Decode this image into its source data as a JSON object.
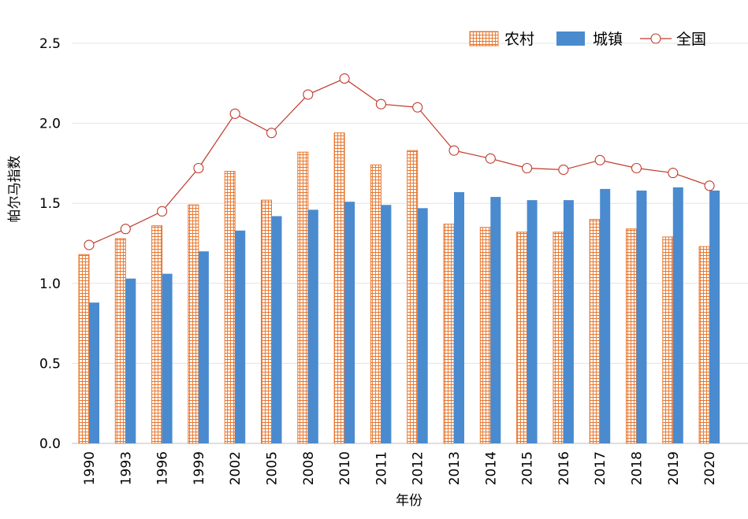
{
  "chart_data": {
    "type": "bar",
    "categories": [
      "1990",
      "1993",
      "1996",
      "1999",
      "2002",
      "2005",
      "2008",
      "2010",
      "2011",
      "2012",
      "2013",
      "2014",
      "2015",
      "2016",
      "2017",
      "2018",
      "2019",
      "2020"
    ],
    "series": [
      {
        "name": "农村",
        "kind": "bar",
        "pattern": "grid",
        "color": "#E8752B",
        "values": [
          1.18,
          1.28,
          1.36,
          1.49,
          1.7,
          1.52,
          1.82,
          1.94,
          1.74,
          1.83,
          1.37,
          1.35,
          1.32,
          1.32,
          1.4,
          1.34,
          1.29,
          1.23
        ]
      },
      {
        "name": "城镇",
        "kind": "bar",
        "color": "#4A8BD0",
        "values": [
          0.88,
          1.03,
          1.06,
          1.2,
          1.33,
          1.42,
          1.46,
          1.51,
          1.49,
          1.47,
          1.57,
          1.54,
          1.52,
          1.52,
          1.59,
          1.58,
          1.6,
          1.58
        ]
      },
      {
        "name": "全国",
        "kind": "line",
        "marker": "circle",
        "color": "#C0392B",
        "values": [
          1.24,
          1.34,
          1.45,
          1.72,
          2.06,
          1.94,
          2.18,
          2.28,
          2.12,
          2.1,
          1.83,
          1.78,
          1.72,
          1.71,
          1.77,
          1.72,
          1.69,
          1.61
        ]
      }
    ],
    "xlabel": "年份",
    "ylabel": "帕尔马指数",
    "ylim": [
      0,
      2.5
    ],
    "yticks": [
      0.0,
      0.5,
      1.0,
      1.5,
      2.0,
      2.5
    ],
    "ytick_labels": [
      "0.0",
      "0.5",
      "1.0",
      "1.5",
      "2.0",
      "2.5"
    ],
    "grid": true,
    "legend_position": "top-right"
  }
}
